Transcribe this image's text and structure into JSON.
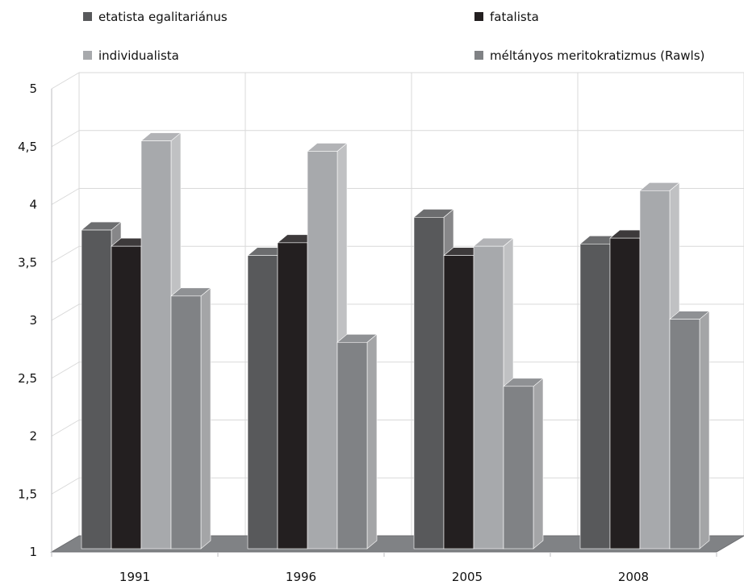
{
  "chart_data": {
    "type": "bar",
    "style": "3d-clustered-column",
    "categories": [
      "1991",
      "1996",
      "2005",
      "2008"
    ],
    "series": [
      {
        "name": "etatista egalitariánus",
        "color": "#58595b",
        "values": [
          3.78,
          3.56,
          3.89,
          3.66
        ]
      },
      {
        "name": "fatalista",
        "color": "#231f20",
        "values": [
          3.64,
          3.67,
          3.56,
          3.71
        ]
      },
      {
        "name": "individualista",
        "color": "#a7a9ac",
        "values": [
          4.55,
          4.46,
          3.64,
          4.12
        ]
      },
      {
        "name": "méltányos meritokratizmus (Rawls)",
        "color": "#808285",
        "values": [
          3.21,
          2.81,
          2.43,
          3.01
        ]
      }
    ],
    "ylim": [
      1,
      5
    ],
    "yticks": [
      "1",
      "1,5",
      "2",
      "2,5",
      "3",
      "3,5",
      "4",
      "4,5",
      "5"
    ],
    "grid": true,
    "legend_position": "top",
    "floor_color": "#808285"
  }
}
